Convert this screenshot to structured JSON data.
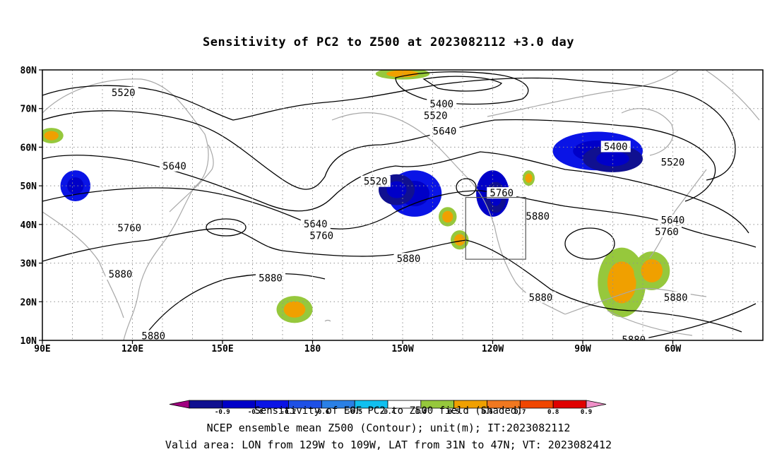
{
  "title": "Sensitivity of PC2 to Z500 at 2023082112 +3.0 day",
  "lat_labels": [
    "80N",
    "70N",
    "60N",
    "50N",
    "40N",
    "30N",
    "20N",
    "10N"
  ],
  "lon_labels": [
    "90E",
    "120E",
    "150E",
    "180",
    "150W",
    "120W",
    "90W",
    "60W"
  ],
  "contour_labels": [
    {
      "text": "5520",
      "lon": 117,
      "lat": 74
    },
    {
      "text": "5400",
      "lon": -137,
      "lat": 71
    },
    {
      "text": "5520",
      "lon": -139,
      "lat": 68
    },
    {
      "text": "5640",
      "lon": -136,
      "lat": 64
    },
    {
      "text": "5640",
      "lon": 134,
      "lat": 55
    },
    {
      "text": "5520",
      "lon": -159,
      "lat": 51
    },
    {
      "text": "5400",
      "lon": -79,
      "lat": 60
    },
    {
      "text": "5520",
      "lon": -60,
      "lat": 56
    },
    {
      "text": "5760",
      "lon": -117,
      "lat": 48
    },
    {
      "text": "5880",
      "lon": -105,
      "lat": 42
    },
    {
      "text": "5640",
      "lon": -60,
      "lat": 41
    },
    {
      "text": "5640",
      "lon": -179,
      "lat": 40
    },
    {
      "text": "5760",
      "lon": -177,
      "lat": 37
    },
    {
      "text": "5760",
      "lon": 119,
      "lat": 39
    },
    {
      "text": "5760",
      "lon": -62,
      "lat": 38
    },
    {
      "text": "5880",
      "lon": -148,
      "lat": 31
    },
    {
      "text": "5880",
      "lon": 116,
      "lat": 27
    },
    {
      "text": "5880",
      "lon": 166,
      "lat": 26
    },
    {
      "text": "5880",
      "lon": -104,
      "lat": 21
    },
    {
      "text": "5880",
      "lon": -59,
      "lat": 21
    },
    {
      "text": "5880",
      "lon": 127,
      "lat": 11
    },
    {
      "text": "5880",
      "lon": -73,
      "lat": 10
    }
  ],
  "colorbar": {
    "labels": [
      "-0.9",
      "-0.8",
      "-0.7",
      "-0.6",
      "-0.5",
      "-0.4",
      "0.4",
      "0.5",
      "0.6",
      "0.7",
      "0.8",
      "0.9"
    ],
    "colors": [
      "#a0007f",
      "#101090",
      "#0000c8",
      "#0a14e6",
      "#1e50e6",
      "#2a80e6",
      "#10c0f0",
      "#ffffff",
      "#96c83c",
      "#f0a000",
      "#f07820",
      "#f04600",
      "#e00000",
      "#f090c8"
    ]
  },
  "footer": {
    "line1": "Sensitivity of EOF PC2 to Z500 field (Shaded)",
    "line2": "NCEP ensemble mean Z500 (Contour); unit(m); IT:2023082112",
    "line3": "Valid area: LON from 129W to 109W, LAT from 31N to 47N; VT: 2023082412"
  },
  "valid_box": {
    "lon_min": -129,
    "lon_max": -109,
    "lat_min": 31,
    "lat_max": 47
  },
  "shaded_blobs": [
    {
      "lon": -146,
      "lat": 48,
      "rx": 9,
      "ry": 6,
      "level": 0.75
    },
    {
      "lon": -152,
      "lat": 49,
      "rx": 6,
      "ry": 4,
      "level": 0.95
    },
    {
      "lon": -120,
      "lat": 48,
      "rx": 5.5,
      "ry": 6,
      "level": 0.8
    },
    {
      "lon": -119,
      "lat": 47,
      "rx": 3.5,
      "ry": 4,
      "level": 0.95
    },
    {
      "lon": -85,
      "lat": 59,
      "rx": 15,
      "ry": 5,
      "level": 0.75
    },
    {
      "lon": -80,
      "lat": 57,
      "rx": 10,
      "ry": 3.5,
      "level": 0.95
    },
    {
      "lon": -150,
      "lat": 79,
      "rx": 9,
      "ry": 1.5,
      "level": 0.45
    },
    {
      "lon": 101,
      "lat": 50,
      "rx": 5,
      "ry": 4,
      "level": 0.7
    },
    {
      "lon": -135,
      "lat": 42,
      "rx": 3,
      "ry": 2.5,
      "level": 0.45
    },
    {
      "lon": -131,
      "lat": 36,
      "rx": 3,
      "ry": 2.5,
      "level": 0.45
    },
    {
      "lon": -108,
      "lat": 52,
      "rx": 2,
      "ry": 2,
      "level": 0.5
    },
    {
      "lon": -77,
      "lat": 25,
      "rx": 8,
      "ry": 9,
      "level": 0.5
    },
    {
      "lon": -67,
      "lat": 28,
      "rx": 6,
      "ry": 5,
      "level": 0.5
    },
    {
      "lon": 174,
      "lat": 18,
      "rx": 6,
      "ry": 3.5,
      "level": 0.5
    },
    {
      "lon": 93,
      "lat": 63,
      "rx": 4,
      "ry": 2,
      "level": 0.5
    }
  ]
}
